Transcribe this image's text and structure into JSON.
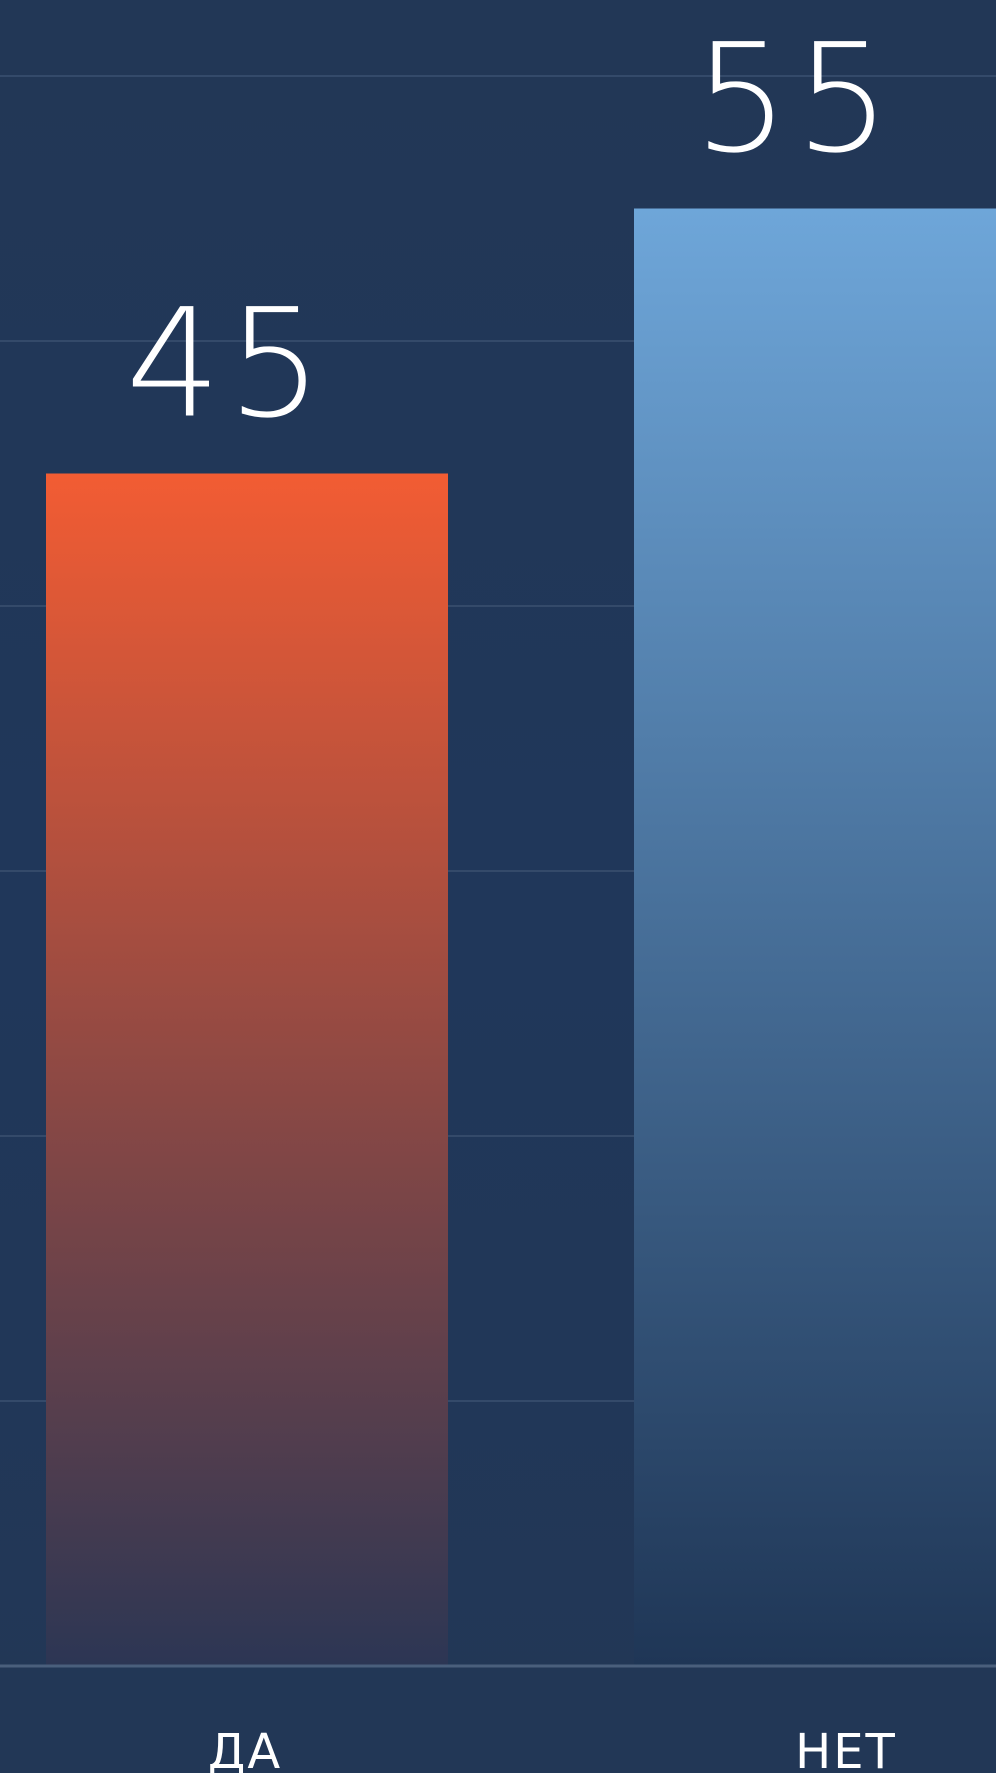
{
  "chart_data": {
    "type": "bar",
    "categories": [
      "ДА",
      "НЕТ"
    ],
    "values": [
      45,
      55
    ],
    "value_labels": [
      "45",
      "55"
    ],
    "ylim": [
      0,
      62
    ],
    "grid": true,
    "colors": {
      "background": "#223756",
      "bar_yes_top": "#f25c33",
      "bar_yes_bottom": "#2c3654",
      "bar_no_top": "#6ea6d9",
      "bar_no_bottom": "#1f3656",
      "text": "#ffffff",
      "grid": "#3a5070"
    }
  }
}
